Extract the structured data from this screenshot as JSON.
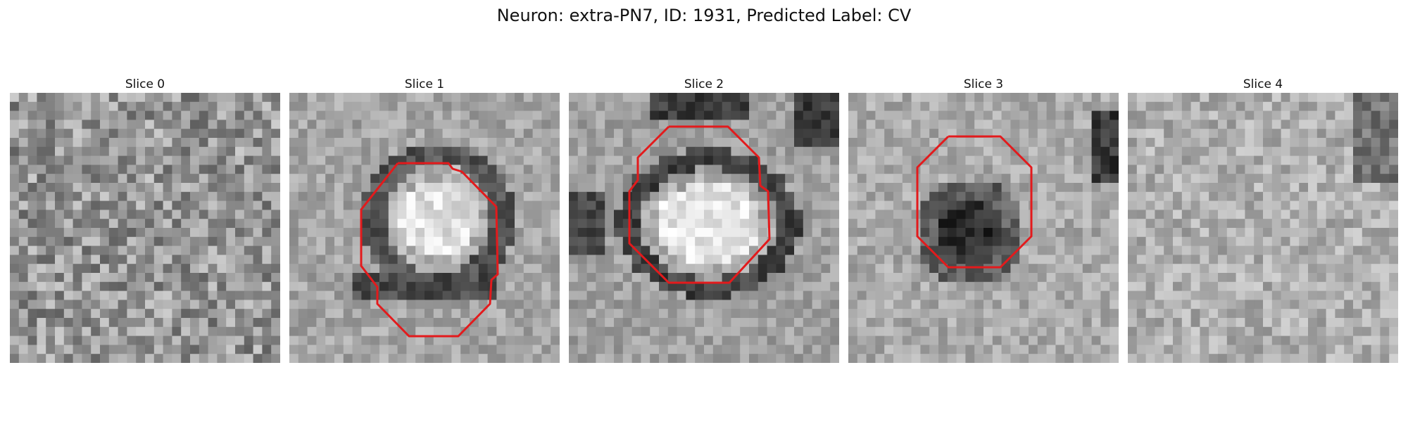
{
  "figure": {
    "title": "Neuron: extra-PN7, ID: 1931, Predicted Label: CV"
  },
  "panels": [
    {
      "title": "Slice 0",
      "has_contour": false
    },
    {
      "title": "Slice 1",
      "has_contour": true
    },
    {
      "title": "Slice 2",
      "has_contour": true
    },
    {
      "title": "Slice 3",
      "has_contour": true
    },
    {
      "title": "Slice 4",
      "has_contour": false
    }
  ],
  "colors": {
    "contour": "#e31a1c",
    "background": "#ffffff"
  }
}
